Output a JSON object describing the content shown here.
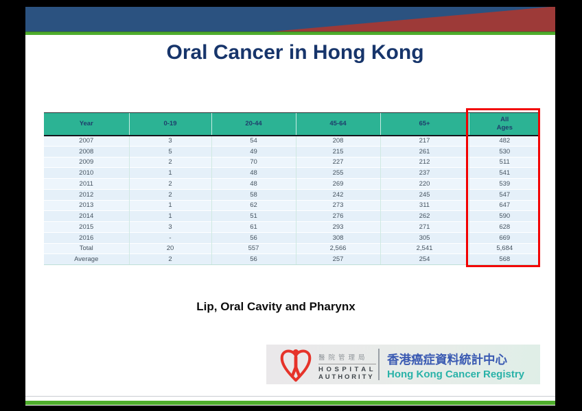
{
  "slide": {
    "title": "Oral Cancer in Hong Kong",
    "caption": "Lip, Oral Cavity and Pharynx"
  },
  "table": {
    "columns": [
      "Year",
      "0-19",
      "20-44",
      "45-64",
      "65+",
      "All\nAges"
    ],
    "rows": [
      [
        "2007",
        "3",
        "54",
        "208",
        "217",
        "482"
      ],
      [
        "2008",
        "5",
        "49",
        "215",
        "261",
        "530"
      ],
      [
        "2009",
        "2",
        "70",
        "227",
        "212",
        "511"
      ],
      [
        "2010",
        "1",
        "48",
        "255",
        "237",
        "541"
      ],
      [
        "2011",
        "2",
        "48",
        "269",
        "220",
        "539"
      ],
      [
        "2012",
        "2",
        "58",
        "242",
        "245",
        "547"
      ],
      [
        "2013",
        "1",
        "62",
        "273",
        "311",
        "647"
      ],
      [
        "2014",
        "1",
        "51",
        "276",
        "262",
        "590"
      ],
      [
        "2015",
        "3",
        "61",
        "293",
        "271",
        "628"
      ],
      [
        "2016",
        "-",
        "56",
        "308",
        "305",
        "669"
      ],
      [
        "Total",
        "20",
        "557",
        "2,566",
        "2,541",
        "5,684"
      ],
      [
        "Average",
        "2",
        "56",
        "257",
        "254",
        "568"
      ]
    ],
    "highlighted_column": "All Ages"
  },
  "logo": {
    "ha_chinese": "醫院管理局",
    "ha_english_line1": "HOSPITAL",
    "ha_english_line2": "AUTHORITY",
    "registry_chinese": "香港癌症資料統計中心",
    "registry_english": "Hong Kong Cancer Registry"
  },
  "colors": {
    "banner_blue": "#2b5280",
    "banner_red_wedge": "#9d3a38",
    "green_stripe": "#4fad2d",
    "title_navy": "#17356b",
    "table_header_teal": "#2cb394",
    "table_header_text": "#1e3d6b",
    "table_row_blue": "#e9f2fa",
    "highlight_red": "#f20000",
    "ha_logo_red": "#e6332a",
    "registry_blue": "#3a5ab2",
    "registry_teal": "#29b2a8"
  }
}
